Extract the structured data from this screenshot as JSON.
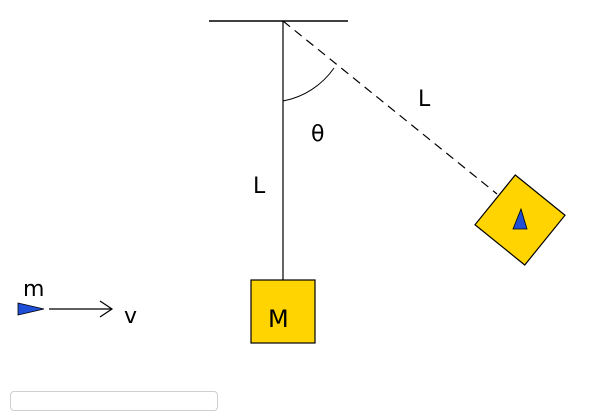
{
  "diagram": {
    "labels": {
      "length_vertical": "L",
      "length_swung": "L",
      "angle": "θ",
      "block_mass": "M",
      "bullet_mass": "m",
      "velocity": "v"
    },
    "colors": {
      "block_fill": "#ffd400",
      "bullet_fill": "#1f4fd6",
      "line": "#000000"
    },
    "icons": {
      "bullet": "bullet-icon",
      "arrow": "arrow-right-icon"
    }
  }
}
